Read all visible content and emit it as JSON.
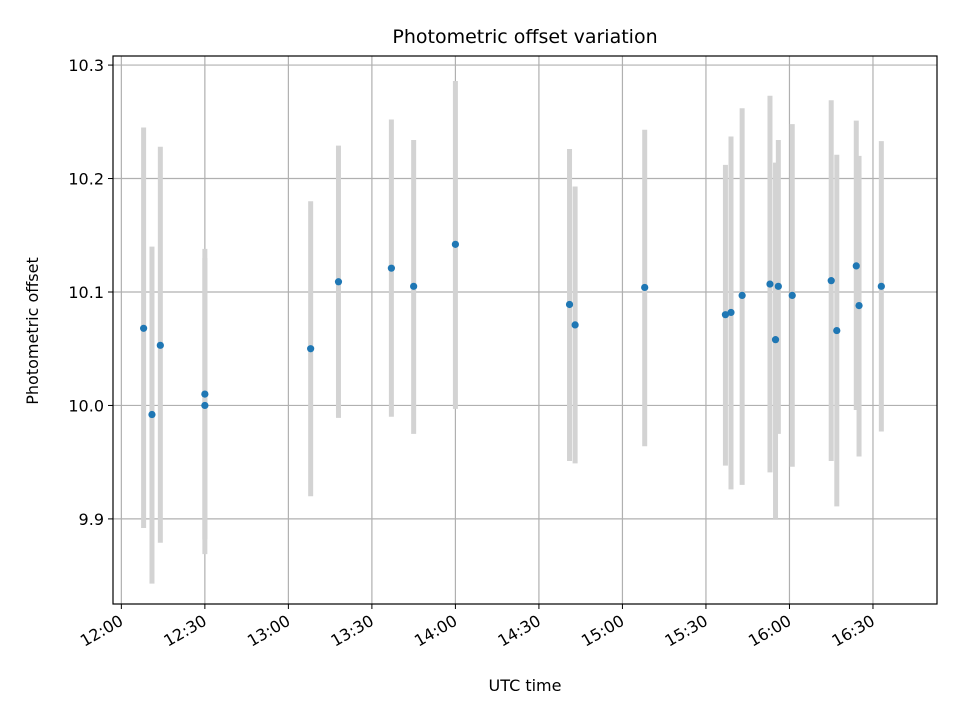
{
  "chart_data": {
    "type": "scatter",
    "title": "Photometric offset variation",
    "xlabel": "UTC time",
    "ylabel": "Photometric offset",
    "grid": true,
    "x_ticks": [
      "12:00",
      "12:30",
      "13:00",
      "13:30",
      "14:00",
      "14:30",
      "15:00",
      "15:30",
      "16:00",
      "16:30"
    ],
    "y_ticks": [
      9.9,
      10.0,
      10.1,
      10.2,
      10.3
    ],
    "xlim": [
      "11:57",
      "16:53"
    ],
    "ylim": [
      9.825,
      10.308
    ],
    "colors": {
      "point": "#1f77b4",
      "errorbar": "#d3d3d3",
      "grid": "#b0b0b0"
    },
    "points": [
      {
        "x": "12:08",
        "y": 10.068,
        "lo": 9.892,
        "hi": 10.245
      },
      {
        "x": "12:11",
        "y": 9.992,
        "lo": 9.843,
        "hi": 10.14
      },
      {
        "x": "12:14",
        "y": 10.053,
        "lo": 9.879,
        "hi": 10.228
      },
      {
        "x": "12:30",
        "y": 10.01,
        "lo": 9.882,
        "hi": 10.138
      },
      {
        "x": "12:30",
        "y": 10.0,
        "lo": 9.869,
        "hi": 10.13
      },
      {
        "x": "13:08",
        "y": 10.05,
        "lo": 9.92,
        "hi": 10.18
      },
      {
        "x": "13:18",
        "y": 10.109,
        "lo": 9.989,
        "hi": 10.229
      },
      {
        "x": "13:37",
        "y": 10.121,
        "lo": 9.99,
        "hi": 10.252
      },
      {
        "x": "13:45",
        "y": 10.105,
        "lo": 9.975,
        "hi": 10.234
      },
      {
        "x": "14:00",
        "y": 10.142,
        "lo": 9.997,
        "hi": 10.286
      },
      {
        "x": "14:41",
        "y": 10.089,
        "lo": 9.951,
        "hi": 10.226
      },
      {
        "x": "14:43",
        "y": 10.071,
        "lo": 9.949,
        "hi": 10.193
      },
      {
        "x": "15:08",
        "y": 10.104,
        "lo": 9.964,
        "hi": 10.243
      },
      {
        "x": "15:37",
        "y": 10.08,
        "lo": 9.947,
        "hi": 10.212
      },
      {
        "x": "15:39",
        "y": 10.082,
        "lo": 9.926,
        "hi": 10.237
      },
      {
        "x": "15:43",
        "y": 10.097,
        "lo": 9.93,
        "hi": 10.262
      },
      {
        "x": "15:53",
        "y": 10.107,
        "lo": 9.941,
        "hi": 10.273
      },
      {
        "x": "15:55",
        "y": 10.058,
        "lo": 9.9,
        "hi": 10.214
      },
      {
        "x": "15:56",
        "y": 10.105,
        "lo": 9.975,
        "hi": 10.234
      },
      {
        "x": "16:01",
        "y": 10.097,
        "lo": 9.946,
        "hi": 10.248
      },
      {
        "x": "16:15",
        "y": 10.11,
        "lo": 9.951,
        "hi": 10.269
      },
      {
        "x": "16:17",
        "y": 10.066,
        "lo": 9.911,
        "hi": 10.221
      },
      {
        "x": "16:24",
        "y": 10.123,
        "lo": 9.996,
        "hi": 10.251
      },
      {
        "x": "16:25",
        "y": 10.088,
        "lo": 9.955,
        "hi": 10.22
      },
      {
        "x": "16:33",
        "y": 10.105,
        "lo": 9.977,
        "hi": 10.233
      }
    ]
  }
}
